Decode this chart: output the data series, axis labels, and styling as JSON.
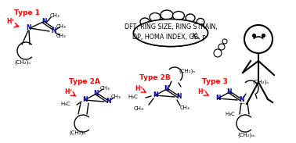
{
  "title": "",
  "background_color": "#ffffff",
  "thought_bubble_text": [
    "DFT, RING SIZE, RING STRAIN,",
    "DP, HOMA INDEX, GB, pKₐ"
  ],
  "type1_label": "Type 1",
  "type2a_label": "Type 2A",
  "type2b_label": "Type 2B",
  "type3_label": "Type 3",
  "label_color": "#ff0000",
  "blue_color": "#0000cc",
  "black_color": "#000000",
  "hplus_color": "#ff0000"
}
